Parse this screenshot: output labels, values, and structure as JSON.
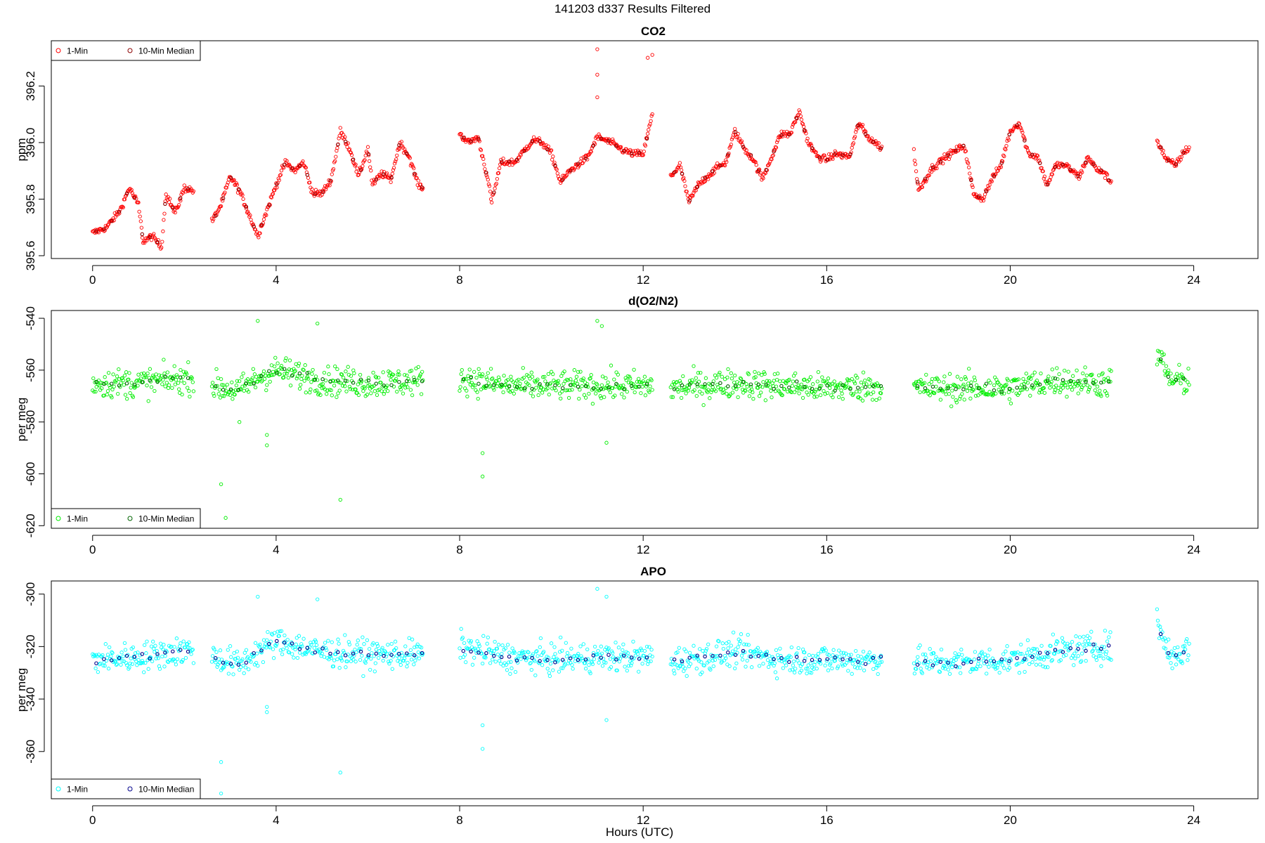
{
  "figure": {
    "title": "141203    d337    Results Filtered",
    "xlabel": "Hours (UTC)"
  },
  "colors": {
    "co2_1min": "#ff0000",
    "co2_median": "#8b0000",
    "o2_1min": "#00ee00",
    "o2_median": "#006400",
    "apo_1min": "#00ffff",
    "apo_median": "#00008b"
  },
  "chart_data": [
    {
      "type": "scatter",
      "title": "CO2",
      "xlabel": "",
      "ylabel": "ppm",
      "xlim": [
        -0.9,
        25.4
      ],
      "ylim": [
        395.59,
        396.36
      ],
      "xticks": [
        0,
        4,
        8,
        12,
        16,
        20,
        24
      ],
      "yticks": [
        395.6,
        395.8,
        396.0,
        396.2
      ],
      "ytick_labels": [
        "395.6",
        "395.8",
        "396.0",
        "396.2"
      ],
      "legend_position": "top-left",
      "series": [
        {
          "name": "1-Min",
          "color_key": "co2_1min",
          "anchors": [
            [
              0.0,
              395.68
            ],
            [
              0.3,
              395.7
            ],
            [
              0.6,
              395.76
            ],
            [
              0.8,
              395.84
            ],
            [
              1.0,
              395.78
            ],
            [
              1.1,
              395.65
            ],
            [
              1.3,
              395.67
            ],
            [
              1.5,
              395.63
            ],
            [
              1.6,
              395.82
            ],
            [
              1.8,
              395.75
            ],
            [
              2.0,
              395.84
            ],
            [
              2.2,
              395.83
            ]
          ],
          "segments": [
            [
              0.0,
              2.2
            ],
            [
              2.6,
              7.2
            ],
            [
              8.0,
              12.2
            ],
            [
              12.6,
              17.2
            ],
            [
              17.9,
              22.2
            ],
            [
              23.2,
              23.9
            ]
          ],
          "noise": 0.012,
          "spikes": [
            [
              11.0,
              396.33
            ],
            [
              11.0,
              396.24
            ],
            [
              11.0,
              396.16
            ],
            [
              12.1,
              396.3
            ],
            [
              12.2,
              396.31
            ]
          ]
        },
        {
          "name": "10-Min Median",
          "color_key": "co2_median",
          "step": 0.1667,
          "noise": 0.004
        }
      ],
      "profile": [
        [
          0.0,
          395.68
        ],
        [
          0.3,
          395.7
        ],
        [
          0.6,
          395.76
        ],
        [
          0.8,
          395.84
        ],
        [
          1.0,
          395.78
        ],
        [
          1.1,
          395.65
        ],
        [
          1.3,
          395.67
        ],
        [
          1.5,
          395.63
        ],
        [
          1.6,
          395.82
        ],
        [
          1.8,
          395.75
        ],
        [
          2.0,
          395.84
        ],
        [
          2.2,
          395.83
        ],
        [
          2.6,
          395.72
        ],
        [
          2.8,
          395.78
        ],
        [
          3.0,
          395.88
        ],
        [
          3.2,
          395.83
        ],
        [
          3.4,
          395.75
        ],
        [
          3.6,
          395.67
        ],
        [
          3.8,
          395.76
        ],
        [
          4.0,
          395.85
        ],
        [
          4.2,
          395.93
        ],
        [
          4.4,
          395.9
        ],
        [
          4.6,
          395.93
        ],
        [
          4.8,
          395.82
        ],
        [
          5.0,
          395.82
        ],
        [
          5.2,
          395.87
        ],
        [
          5.4,
          396.04
        ],
        [
          5.6,
          395.98
        ],
        [
          5.8,
          395.88
        ],
        [
          6.0,
          395.98
        ],
        [
          6.1,
          395.85
        ],
        [
          6.3,
          395.89
        ],
        [
          6.5,
          395.87
        ],
        [
          6.7,
          396.0
        ],
        [
          6.9,
          395.95
        ],
        [
          7.1,
          395.85
        ],
        [
          7.2,
          395.84
        ],
        [
          8.0,
          396.03
        ],
        [
          8.2,
          396.0
        ],
        [
          8.4,
          396.02
        ],
        [
          8.6,
          395.88
        ],
        [
          8.7,
          395.79
        ],
        [
          8.9,
          395.93
        ],
        [
          9.2,
          395.93
        ],
        [
          9.6,
          396.01
        ],
        [
          9.8,
          396.0
        ],
        [
          10.0,
          395.96
        ],
        [
          10.2,
          395.86
        ],
        [
          10.4,
          395.9
        ],
        [
          10.8,
          395.95
        ],
        [
          11.0,
          396.02
        ],
        [
          11.3,
          396.0
        ],
        [
          11.6,
          395.97
        ],
        [
          11.8,
          395.96
        ],
        [
          12.0,
          395.96
        ],
        [
          12.2,
          396.1
        ],
        [
          12.6,
          395.88
        ],
        [
          12.8,
          395.92
        ],
        [
          13.0,
          395.79
        ],
        [
          13.2,
          395.85
        ],
        [
          13.4,
          395.88
        ],
        [
          13.6,
          395.91
        ],
        [
          13.8,
          395.93
        ],
        [
          14.0,
          396.04
        ],
        [
          14.2,
          395.98
        ],
        [
          14.4,
          395.94
        ],
        [
          14.6,
          395.87
        ],
        [
          14.8,
          395.95
        ],
        [
          15.0,
          396.03
        ],
        [
          15.2,
          396.03
        ],
        [
          15.4,
          396.11
        ],
        [
          15.6,
          396.0
        ],
        [
          15.8,
          395.95
        ],
        [
          16.0,
          395.94
        ],
        [
          16.2,
          395.96
        ],
        [
          16.5,
          395.95
        ],
        [
          16.7,
          396.07
        ],
        [
          16.9,
          396.02
        ],
        [
          17.2,
          395.98
        ],
        [
          17.9,
          395.97
        ],
        [
          18.0,
          395.83
        ],
        [
          18.3,
          395.91
        ],
        [
          18.6,
          395.95
        ],
        [
          18.8,
          395.97
        ],
        [
          19.0,
          395.99
        ],
        [
          19.2,
          395.82
        ],
        [
          19.4,
          395.8
        ],
        [
          19.6,
          395.87
        ],
        [
          19.8,
          395.92
        ],
        [
          20.0,
          396.04
        ],
        [
          20.2,
          396.07
        ],
        [
          20.4,
          395.96
        ],
        [
          20.6,
          395.95
        ],
        [
          20.8,
          395.85
        ],
        [
          21.0,
          395.92
        ],
        [
          21.2,
          395.92
        ],
        [
          21.5,
          395.88
        ],
        [
          21.7,
          395.95
        ],
        [
          21.9,
          395.9
        ],
        [
          22.0,
          395.9
        ],
        [
          22.2,
          395.86
        ],
        [
          23.2,
          396.01
        ],
        [
          23.4,
          395.94
        ],
        [
          23.6,
          395.92
        ],
        [
          23.8,
          395.97
        ],
        [
          23.9,
          395.98
        ]
      ]
    },
    {
      "type": "scatter",
      "title": "d(O2/N2)",
      "xlabel": "",
      "ylabel": "per meg",
      "xlim": [
        -0.9,
        25.4
      ],
      "ylim": [
        -621,
        -537
      ],
      "xticks": [
        0,
        4,
        8,
        12,
        16,
        20,
        24
      ],
      "yticks": [
        -620,
        -600,
        -580,
        -560,
        -540
      ],
      "ytick_labels": [
        "-620",
        "-600",
        "-580",
        "-560",
        "-540"
      ],
      "legend_position": "bottom-left",
      "series": [
        {
          "name": "1-Min",
          "color_key": "o2_1min",
          "noise": 5.5,
          "spikes": [
            [
              2.8,
              -604
            ],
            [
              2.9,
              -617
            ],
            [
              3.6,
              -541
            ],
            [
              3.8,
              -589
            ],
            [
              4.9,
              -542
            ],
            [
              5.4,
              -610
            ],
            [
              8.5,
              -592
            ],
            [
              8.5,
              -601
            ],
            [
              11.0,
              -541
            ],
            [
              11.1,
              -543
            ],
            [
              11.2,
              -588
            ],
            [
              3.2,
              -580
            ],
            [
              3.8,
              -585
            ]
          ]
        },
        {
          "name": "10-Min Median",
          "color_key": "o2_median",
          "step": 0.1667,
          "noise": 1.5
        }
      ],
      "profile": [
        [
          0.0,
          -565
        ],
        [
          1.0,
          -565
        ],
        [
          2.2,
          -563
        ],
        [
          2.6,
          -566
        ],
        [
          3.2,
          -568
        ],
        [
          3.6,
          -563
        ],
        [
          4.0,
          -560
        ],
        [
          5.0,
          -564
        ],
        [
          6.0,
          -565
        ],
        [
          7.2,
          -564
        ],
        [
          8.0,
          -563
        ],
        [
          9.0,
          -566
        ],
        [
          10.0,
          -566
        ],
        [
          11.0,
          -566
        ],
        [
          12.2,
          -566
        ],
        [
          12.6,
          -567
        ],
        [
          14.0,
          -565
        ],
        [
          15.0,
          -566
        ],
        [
          16.0,
          -567
        ],
        [
          17.2,
          -566
        ],
        [
          17.9,
          -567
        ],
        [
          19.0,
          -567
        ],
        [
          20.0,
          -567
        ],
        [
          21.0,
          -564
        ],
        [
          22.2,
          -565
        ],
        [
          23.2,
          -553
        ],
        [
          23.5,
          -564
        ],
        [
          23.9,
          -564
        ]
      ]
    },
    {
      "type": "scatter",
      "title": "APO",
      "xlabel": "Hours (UTC)",
      "ylabel": "per meg",
      "xlim": [
        -0.9,
        25.4
      ],
      "ylim": [
        -378,
        -295
      ],
      "xticks": [
        0,
        4,
        8,
        12,
        16,
        20,
        24
      ],
      "yticks": [
        -360,
        -340,
        -320,
        -300
      ],
      "ytick_labels": [
        "-360",
        "-340",
        "-320",
        "-300"
      ],
      "legend_position": "bottom-left",
      "series": [
        {
          "name": "1-Min",
          "color_key": "apo_1min",
          "noise": 5.5,
          "spikes": [
            [
              2.8,
              -364
            ],
            [
              2.8,
              -376
            ],
            [
              3.6,
              -301
            ],
            [
              3.8,
              -345
            ],
            [
              4.9,
              -302
            ],
            [
              5.4,
              -368
            ],
            [
              8.5,
              -350
            ],
            [
              8.5,
              -359
            ],
            [
              11.0,
              -298
            ],
            [
              11.2,
              -301
            ],
            [
              11.2,
              -348
            ],
            [
              3.8,
              -343
            ]
          ]
        },
        {
          "name": "10-Min Median",
          "color_key": "apo_median",
          "step": 0.1667,
          "noise": 1.5
        }
      ],
      "profile": [
        [
          0.0,
          -325
        ],
        [
          1.0,
          -324
        ],
        [
          2.2,
          -321
        ],
        [
          2.6,
          -324
        ],
        [
          3.2,
          -327
        ],
        [
          3.6,
          -322
        ],
        [
          4.0,
          -318
        ],
        [
          5.0,
          -322
        ],
        [
          6.0,
          -323
        ],
        [
          7.2,
          -323
        ],
        [
          8.0,
          -320
        ],
        [
          9.0,
          -324
        ],
        [
          10.0,
          -325
        ],
        [
          11.0,
          -324
        ],
        [
          12.2,
          -324
        ],
        [
          12.6,
          -326
        ],
        [
          14.0,
          -322
        ],
        [
          15.0,
          -325
        ],
        [
          16.0,
          -325
        ],
        [
          17.2,
          -325
        ],
        [
          17.9,
          -326
        ],
        [
          19.0,
          -326
        ],
        [
          20.0,
          -325
        ],
        [
          21.0,
          -322
        ],
        [
          22.2,
          -320
        ],
        [
          23.2,
          -311
        ],
        [
          23.5,
          -324
        ],
        [
          23.9,
          -321
        ]
      ]
    }
  ]
}
